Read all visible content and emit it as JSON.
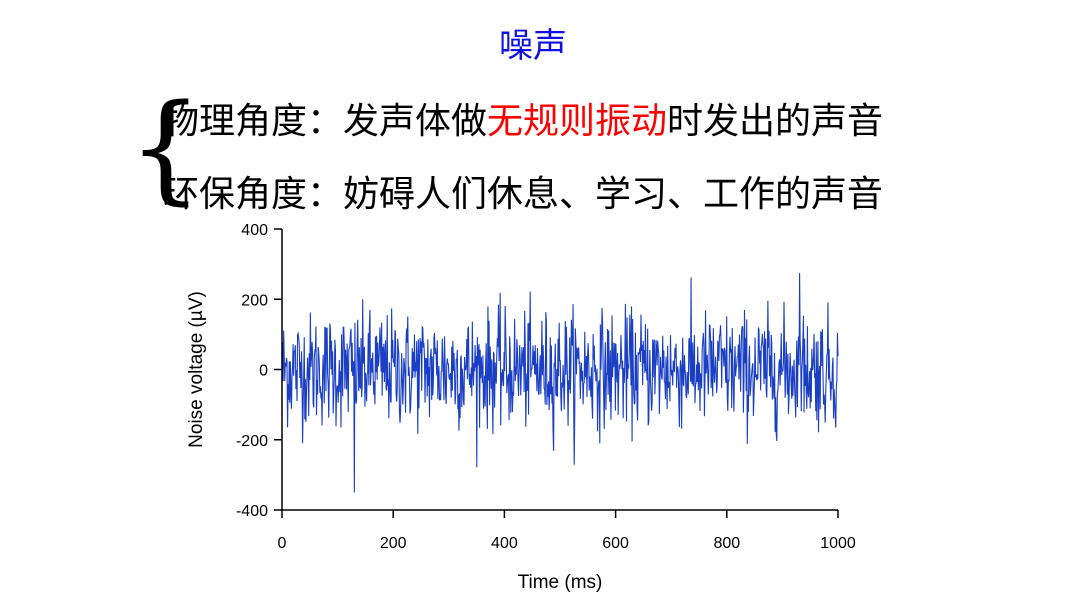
{
  "slide": {
    "title": "噪声",
    "definitions": [
      {
        "label": "物理角度：",
        "pre": "发声体做",
        "highlight": "无规则振动",
        "post": "时发出的声音"
      },
      {
        "label": "环保角度：",
        "pre": "妨碍人们休息、学习、工作的声音",
        "highlight": "",
        "post": ""
      }
    ],
    "highlight_color": "#ff0000",
    "title_color": "#1010e0"
  },
  "chart_data": {
    "type": "line",
    "xlabel": "Time (ms)",
    "ylabel": "Noise voltage (µV)",
    "xlim": [
      0,
      1000
    ],
    "ylim": [
      -400,
      400
    ],
    "xticks": [
      "0",
      "200",
      "400",
      "600",
      "800",
      "1000"
    ],
    "yticks": [
      "400",
      "200",
      "0",
      "-200",
      "-400"
    ],
    "grid": false,
    "series_color": "#1a3fc4",
    "noise": {
      "points": 1000,
      "std": 80,
      "max": 275,
      "min": -350
    }
  }
}
